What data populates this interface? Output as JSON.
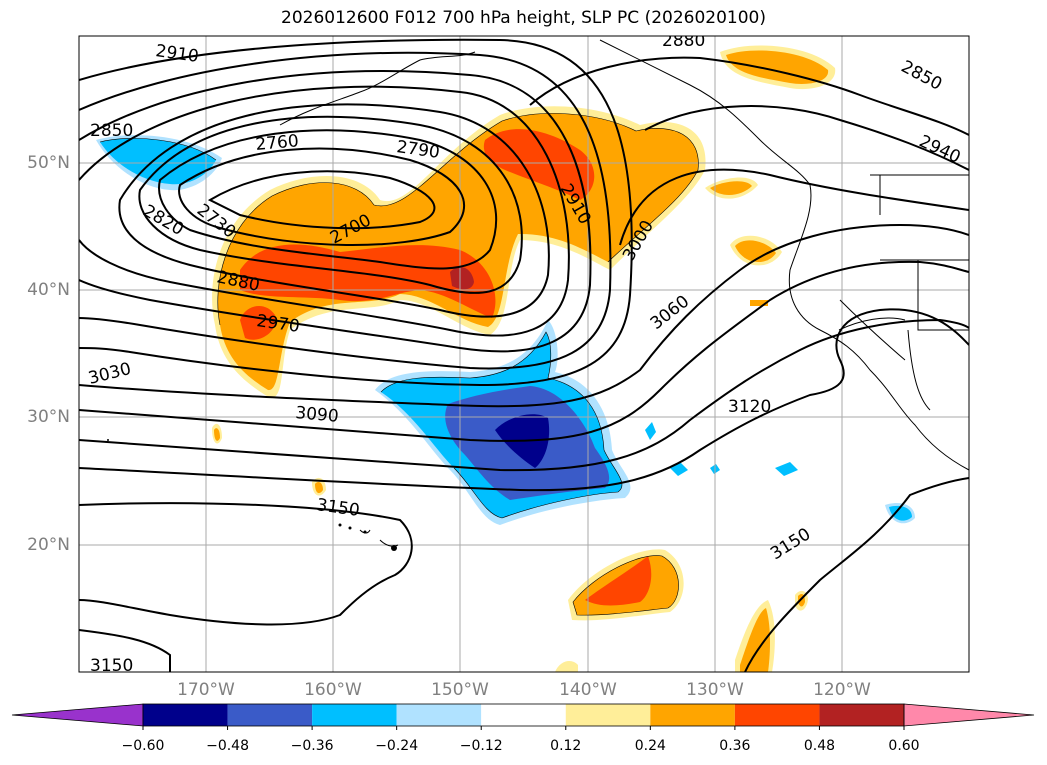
{
  "title": "2026012600 F012 700 hPa height, SLP PC (2026020100)",
  "map": {
    "projection": "cylindrical",
    "lon_range": [
      -180,
      -110
    ],
    "lat_range": [
      10,
      60
    ],
    "lat_labels": [
      "50°N",
      "40°N",
      "30°N",
      "20°N"
    ],
    "lon_labels": [
      "170°W",
      "160°W",
      "150°W",
      "140°W",
      "130°W",
      "120°W"
    ],
    "gridlines": true
  },
  "contours": {
    "variable": "700 hPa height",
    "line_color": "#000000",
    "labels": [
      "2910",
      "2880",
      "2850",
      "2850",
      "2940",
      "2760",
      "2790",
      "2820",
      "2730",
      "2700",
      "2910",
      "3000",
      "2880",
      "2970",
      "3060",
      "3030",
      "3090",
      "3120",
      "3150",
      "3150",
      "3150"
    ]
  },
  "shading": {
    "variable": "SLP PC",
    "regions": [
      {
        "name": "negative-core",
        "sign": "negative",
        "max_abs": 0.6
      },
      {
        "name": "positive-central",
        "sign": "positive",
        "max_abs": 0.55
      },
      {
        "name": "positive-gulf",
        "sign": "positive",
        "max_abs": 0.4
      },
      {
        "name": "negative-nw",
        "sign": "negative",
        "max_abs": 0.3
      },
      {
        "name": "positive-south",
        "sign": "positive",
        "max_abs": 0.4
      }
    ]
  },
  "colorbar": {
    "ticks": [
      "−0.60",
      "−0.48",
      "−0.36",
      "−0.24",
      "−0.12",
      "0.12",
      "0.24",
      "0.36",
      "0.48",
      "0.60"
    ],
    "colors": [
      "#9932cc",
      "#00008b",
      "#3a5bc8",
      "#00bfff",
      "#b0e2ff",
      "#ffffff",
      "#ffee99",
      "#ffa500",
      "#ff4500",
      "#b22222",
      "#ff88aa"
    ],
    "extend": "both"
  }
}
